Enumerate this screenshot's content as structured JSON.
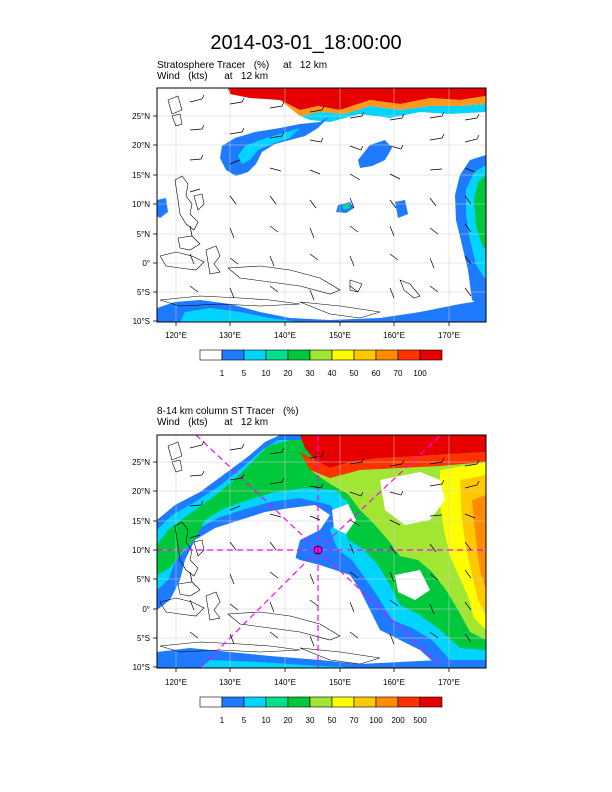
{
  "page_title": "2014-03-01_18:00:00",
  "panel1": {
    "subtitle_1": "Stratosphere Tracer   (%)     at   12 km",
    "subtitle_2": "Wind   (kts)      at   12 km",
    "colorbar": {
      "labels": [
        "1",
        "5",
        "10",
        "20",
        "30",
        "40",
        "50",
        "60",
        "70",
        "100"
      ],
      "colors": [
        "#ffffff",
        "#1e7bff",
        "#00d4ff",
        "#00e08a",
        "#00c83c",
        "#a0e632",
        "#ffff00",
        "#ffc800",
        "#ff8c00",
        "#ff3200",
        "#e60000"
      ]
    }
  },
  "panel2": {
    "subtitle_1": "8-14 km column ST Tracer   (%)",
    "subtitle_2": "Wind   (kts)      at   12 km",
    "colorbar": {
      "labels": [
        "1",
        "5",
        "10",
        "20",
        "30",
        "50",
        "70",
        "100",
        "200",
        "500"
      ],
      "colors": [
        "#ffffff",
        "#1e7bff",
        "#00d4ff",
        "#00e08a",
        "#00c83c",
        "#a0e632",
        "#ffff00",
        "#ffc800",
        "#ff8c00",
        "#ff3200",
        "#e60000"
      ]
    }
  },
  "axes": {
    "lon_labels": [
      "120°E",
      "130°E",
      "140°E",
      "150°E",
      "160°E",
      "170°E"
    ],
    "lat_labels": [
      "25°N",
      "20°N",
      "15°N",
      "10°N",
      "5°N",
      "0°",
      "5°S",
      "10°S"
    ],
    "lon_range": [
      115,
      175
    ],
    "lat_range": [
      -10,
      29
    ]
  },
  "marker": {
    "lon": 145,
    "lat": 10,
    "color": "#ff00ff"
  }
}
